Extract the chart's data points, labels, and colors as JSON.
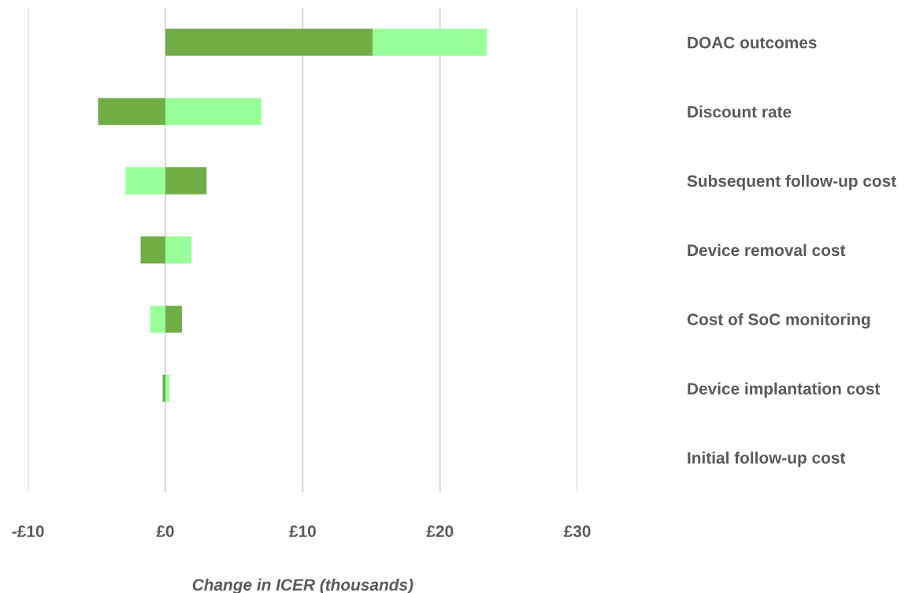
{
  "chart_data": {
    "type": "bar",
    "orientation": "horizontal",
    "xlabel": "Change in ICER (thousands)",
    "categories": [
      "DOAC outcomes",
      "Discount rate",
      "Subsequent follow-up cost",
      "Device removal cost",
      "Cost of SoC monitoring",
      "Device implantation cost",
      "Initial follow-up cost"
    ],
    "series": [
      {
        "color": "#70ad47",
        "values": [
          15.1,
          -4.9,
          3.0,
          -1.8,
          1.2,
          -0.2,
          0
        ]
      },
      {
        "color": "#99ff99",
        "values": [
          8.3,
          7.0,
          -2.9,
          1.9,
          -1.1,
          0.3,
          0
        ]
      }
    ],
    "stacked": true,
    "xlim": [
      -10,
      30
    ],
    "xticks": [
      {
        "value": -10,
        "label": "-£10"
      },
      {
        "value": 0,
        "label": "£0"
      },
      {
        "value": 10,
        "label": "£10"
      },
      {
        "value": 20,
        "label": "£20"
      },
      {
        "value": 30,
        "label": "£30"
      }
    ],
    "grid": "x",
    "legend": false
  }
}
